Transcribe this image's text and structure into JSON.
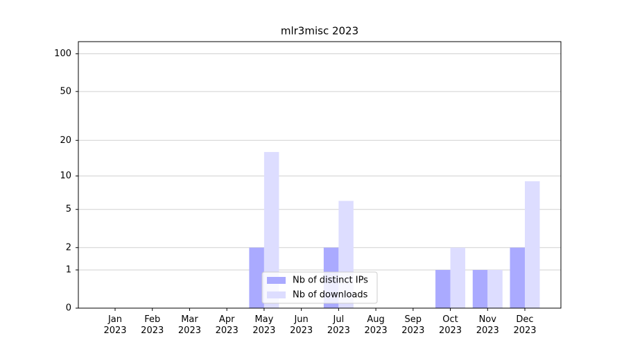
{
  "chart_data": {
    "type": "bar",
    "title": "mlr3misc 2023",
    "scale": "symlog",
    "categories": [
      "Jan 2023",
      "Feb 2023",
      "Mar 2023",
      "Apr 2023",
      "May 2023",
      "Jun 2023",
      "Jul 2023",
      "Aug 2023",
      "Sep 2023",
      "Oct 2023",
      "Nov 2023",
      "Dec 2023"
    ],
    "series": [
      {
        "name": "Nb of distinct IPs",
        "color": "#aaaaff",
        "values": [
          0,
          0,
          0,
          0,
          2,
          0,
          2,
          0,
          0,
          1,
          1,
          2
        ]
      },
      {
        "name": "Nb of downloads",
        "color": "#ddddff",
        "values": [
          0,
          0,
          0,
          0,
          16,
          0,
          6,
          0,
          0,
          2,
          1,
          9
        ]
      }
    ],
    "ylim": [
      0,
      125
    ],
    "yticks": [
      0,
      1,
      2,
      5,
      10,
      20,
      50,
      100
    ],
    "grid": true,
    "legend": "lower center"
  }
}
